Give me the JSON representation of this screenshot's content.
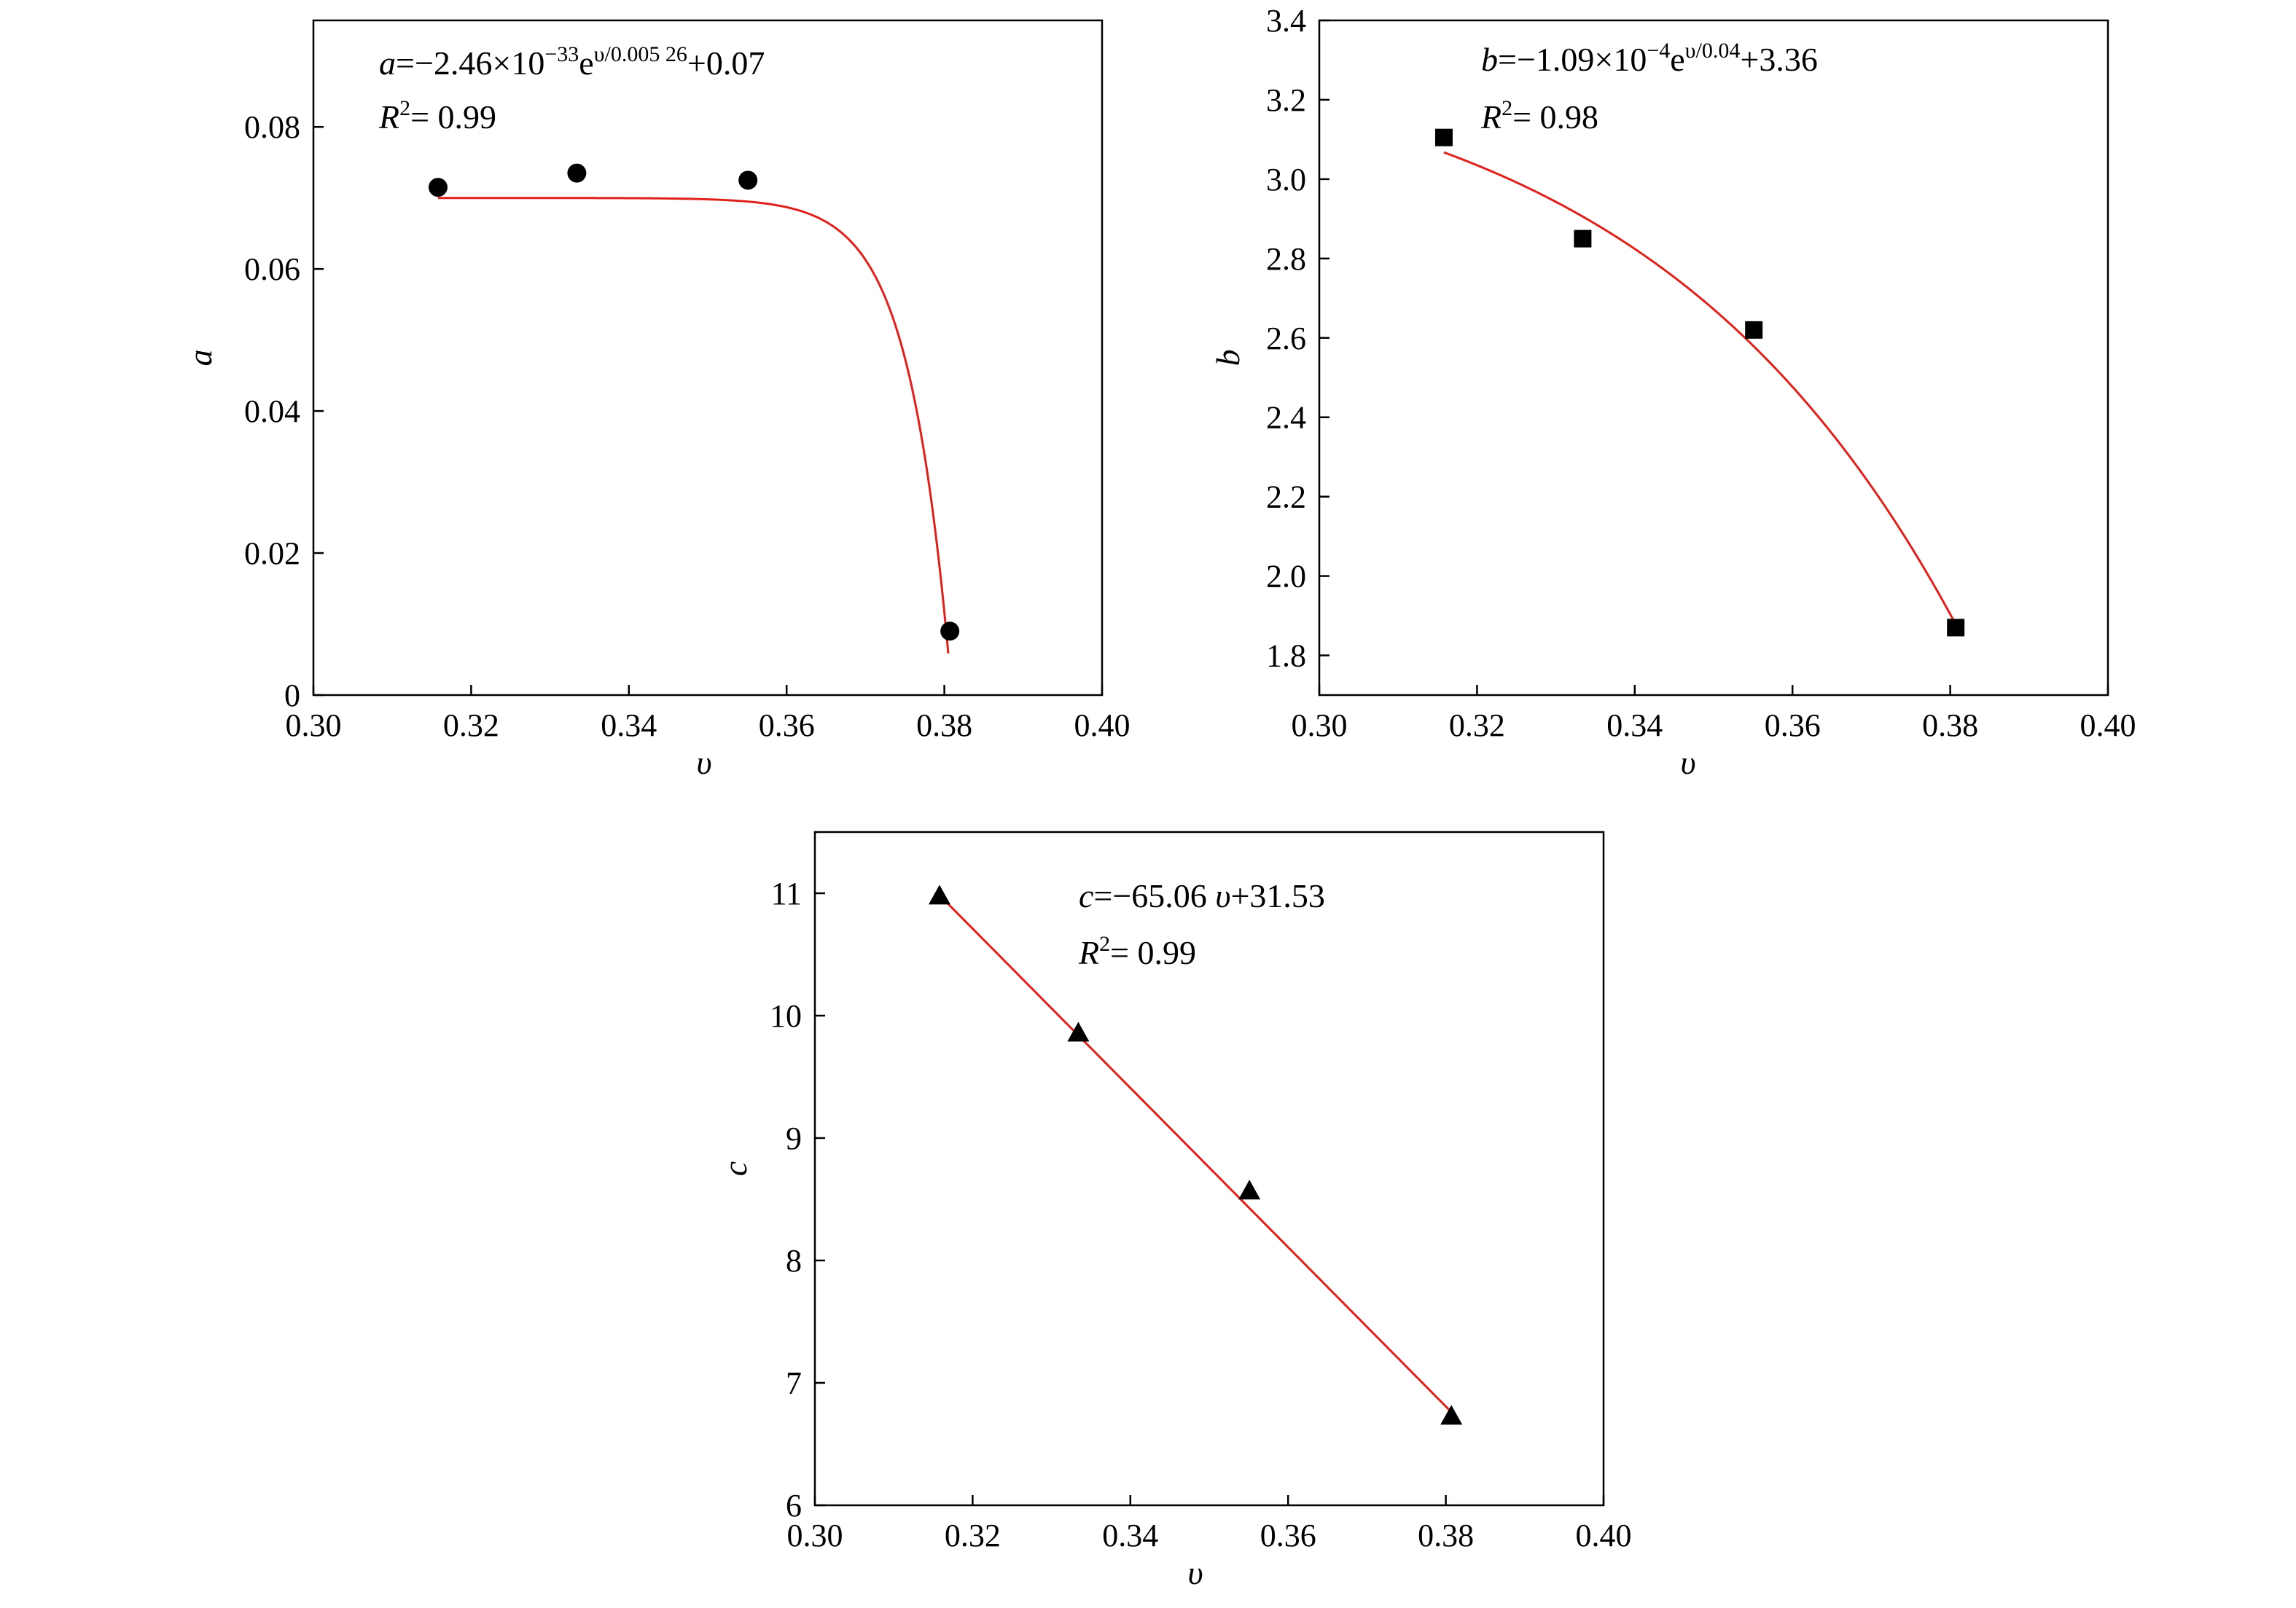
{
  "colors": {
    "fit": "#e0201b",
    "marker": "#000000"
  },
  "chart_data": [
    {
      "id": "a",
      "type": "scatter",
      "marker": "circle",
      "xlabel": "υ",
      "ylabel": "a",
      "xlim": [
        0.3,
        0.4
      ],
      "ylim": [
        0,
        0.095
      ],
      "xticks": [
        "0.30",
        "0.32",
        "0.34",
        "0.36",
        "0.38",
        "0.40"
      ],
      "yticks": [
        "0",
        "0.02",
        "0.04",
        "0.06",
        "0.08"
      ],
      "grid": false,
      "x": [
        0.3158,
        0.3334,
        0.3551,
        0.3807
      ],
      "y": [
        0.0715,
        0.0735,
        0.0725,
        0.009
      ],
      "fit": {
        "model": "exponential",
        "A": -2.46e-33,
        "T": 0.00526,
        "C": 0.07,
        "x_range": [
          0.3158,
          0.3805
        ]
      },
      "equation": {
        "var": "a",
        "rhs_pre": "=−2.46×10",
        "exp1": "−33",
        "mid": "e",
        "exp2": "υ/0.005 26",
        "rhs_post": "+0.07"
      },
      "r2": {
        "sym": "R",
        "sup": "2",
        "value": "= 0.99"
      }
    },
    {
      "id": "b",
      "type": "scatter",
      "marker": "square",
      "xlabel": "υ",
      "ylabel": "b",
      "xlim": [
        0.3,
        0.4
      ],
      "ylim": [
        1.7,
        3.4
      ],
      "xticks": [
        "0.30",
        "0.32",
        "0.34",
        "0.36",
        "0.38",
        "0.40"
      ],
      "yticks": [
        "1.8",
        "2.0",
        "2.2",
        "2.4",
        "2.6",
        "2.8",
        "3.0",
        "3.2",
        "3.4"
      ],
      "grid": false,
      "x": [
        0.3158,
        0.3334,
        0.3551,
        0.3807
      ],
      "y": [
        3.105,
        2.85,
        2.62,
        1.87
      ],
      "fit": {
        "model": "exponential",
        "A": -0.000109,
        "T": 0.04,
        "C": 3.36,
        "x_range": [
          0.3158,
          0.3807
        ]
      },
      "equation": {
        "var": "b",
        "rhs_pre": "=−1.09×10",
        "exp1": "−4",
        "mid": "e",
        "exp2": "υ/0.04",
        "rhs_post": "+3.36"
      },
      "r2": {
        "sym": "R",
        "sup": "2",
        "value": "= 0.98"
      }
    },
    {
      "id": "c",
      "type": "scatter",
      "marker": "triangle",
      "xlabel": "υ",
      "ylabel": "c",
      "xlim": [
        0.3,
        0.4
      ],
      "ylim": [
        6,
        11.5
      ],
      "xticks": [
        "0.30",
        "0.32",
        "0.34",
        "0.36",
        "0.38",
        "0.40"
      ],
      "yticks": [
        "6",
        "7",
        "8",
        "9",
        "10",
        "11"
      ],
      "grid": false,
      "x": [
        0.3158,
        0.3334,
        0.3551,
        0.3807
      ],
      "y": [
        10.98,
        9.86,
        8.57,
        6.73
      ],
      "fit": {
        "model": "linear",
        "slope": -65.06,
        "intercept": 31.53,
        "x_range": [
          0.3158,
          0.3807
        ]
      },
      "equation": {
        "var": "c",
        "rhs_pre": "=−65.06 ",
        "var2": "υ",
        "rhs_post": "+31.53"
      },
      "r2": {
        "sym": "R",
        "sup": "2",
        "value": "= 0.99"
      }
    }
  ]
}
